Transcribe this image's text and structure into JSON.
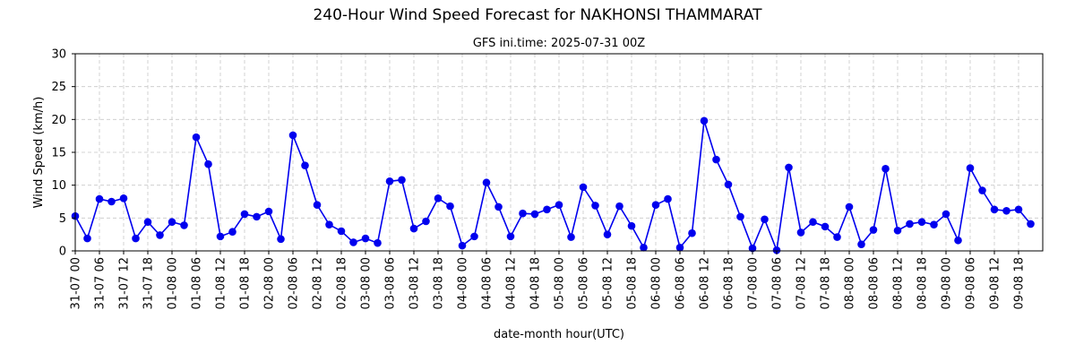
{
  "chart_data": {
    "type": "line",
    "title": "240-Hour Wind Speed Forecast for NAKHONSI THAMMARAT",
    "subtitle": "GFS ini.time: 2025-07-31 00Z",
    "xlabel": "date-month hour(UTC)",
    "ylabel": "Wind Speed (km/h)",
    "ylim": [
      0,
      30
    ],
    "yticks": [
      0,
      5,
      10,
      15,
      20,
      25,
      30
    ],
    "grid": true,
    "x_step_hours": 3,
    "xtick_every": 2,
    "xticks": [
      "31-07 00",
      "31-07 06",
      "31-07 12",
      "31-07 18",
      "01-08 00",
      "01-08 06",
      "01-08 12",
      "01-08 18",
      "02-08 00",
      "02-08 06",
      "02-08 12",
      "02-08 18",
      "03-08 00",
      "03-08 06",
      "03-08 12",
      "03-08 18",
      "04-08 00",
      "04-08 06",
      "04-08 12",
      "04-08 18",
      "05-08 00",
      "05-08 06",
      "05-08 12",
      "05-08 18",
      "06-08 00",
      "06-08 06",
      "06-08 12",
      "06-08 18",
      "07-08 00",
      "07-08 06",
      "07-08 12",
      "07-08 18",
      "08-08 00",
      "08-08 06",
      "08-08 12",
      "08-08 18",
      "09-08 00",
      "09-08 06",
      "09-08 12",
      "09-08 18"
    ],
    "series": [
      {
        "color": "#0000ee",
        "values": [
          5.3,
          1.9,
          7.9,
          7.5,
          8.0,
          1.9,
          4.4,
          2.4,
          4.4,
          3.9,
          17.3,
          13.2,
          2.2,
          2.9,
          5.6,
          5.2,
          6.0,
          1.8,
          17.6,
          13.0,
          7.0,
          4.0,
          3.0,
          1.3,
          1.9,
          1.2,
          10.6,
          10.8,
          3.4,
          4.5,
          8.0,
          6.8,
          0.8,
          2.2,
          10.4,
          6.7,
          2.2,
          5.7,
          5.6,
          6.3,
          7.0,
          2.1,
          9.7,
          6.9,
          2.5,
          6.8,
          3.8,
          0.5,
          7.0,
          7.9,
          0.5,
          2.7,
          19.8,
          13.9,
          10.1,
          5.2,
          0.4,
          4.8,
          0.1,
          12.7,
          2.8,
          4.4,
          3.7,
          2.1,
          6.7,
          1.0,
          3.2,
          12.5,
          3.1,
          4.1,
          4.4,
          4.0,
          5.6,
          1.6,
          12.6,
          9.2,
          6.3,
          6.1,
          6.3,
          4.1
        ]
      }
    ]
  }
}
